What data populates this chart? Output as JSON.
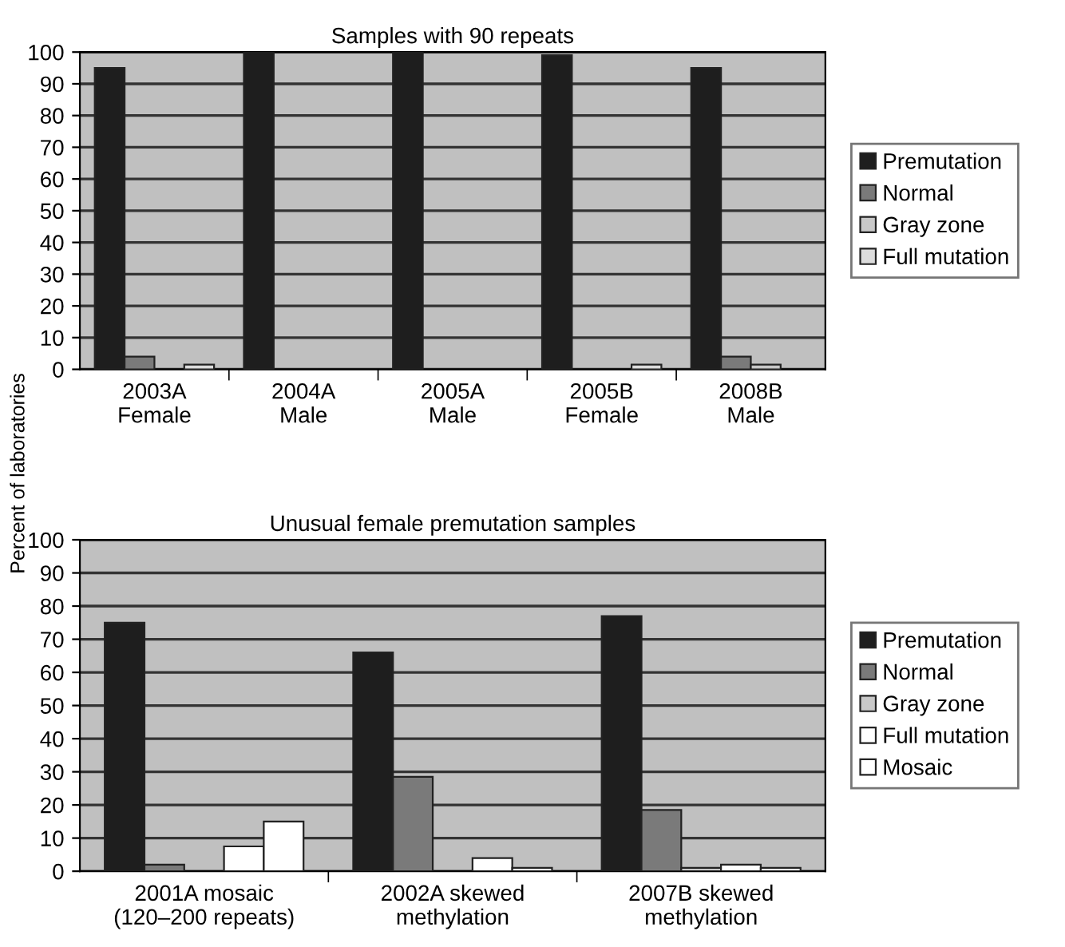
{
  "chart_data": [
    {
      "type": "bar",
      "title": "Samples with 90 repeats",
      "ylabel": "Percent of laboratories",
      "categories": [
        "2003A\nFemale",
        "2004A\nMale",
        "2005A\nMale",
        "2005B\nFemale",
        "2008B\nMale"
      ],
      "series": [
        {
          "name": "Premutation",
          "color": "#1e1e1e",
          "values": [
            95,
            100,
            100,
            99,
            95
          ]
        },
        {
          "name": "Normal",
          "color": "#7a7a7a",
          "values": [
            4,
            null,
            null,
            null,
            4
          ]
        },
        {
          "name": "Gray zone",
          "color": "#c8c8c8",
          "values": [
            null,
            null,
            null,
            null,
            1.5
          ]
        },
        {
          "name": "Full mutation",
          "color": "#dcdcdc",
          "values": [
            1.5,
            null,
            null,
            1.5,
            null
          ]
        }
      ],
      "ylim": [
        0,
        100
      ],
      "yticks": [
        0,
        10,
        20,
        30,
        40,
        50,
        60,
        70,
        80,
        90,
        100
      ],
      "grid": "y",
      "legend": "right"
    },
    {
      "type": "bar",
      "title": "Unusual female premutation samples",
      "categories": [
        "2001A mosaic\n(120–200 repeats)",
        "2002A skewed\nmethylation",
        "2007B skewed\nmethylation"
      ],
      "series": [
        {
          "name": "Premutation",
          "color": "#1e1e1e",
          "values": [
            75,
            66,
            77
          ]
        },
        {
          "name": "Normal",
          "color": "#7a7a7a",
          "values": [
            2,
            28.5,
            18.5
          ]
        },
        {
          "name": "Gray zone",
          "color": "#c8c8c8",
          "values": [
            null,
            null,
            1
          ]
        },
        {
          "name": "Full mutation",
          "color": "#ffffff",
          "values": [
            7.5,
            4,
            2
          ]
        },
        {
          "name": "Mosaic",
          "color": "#ffffff",
          "values": [
            15,
            1,
            1
          ]
        }
      ],
      "ylim": [
        0,
        100
      ],
      "yticks": [
        0,
        10,
        20,
        30,
        40,
        50,
        60,
        70,
        80,
        90,
        100
      ],
      "grid": "y",
      "legend": "right"
    }
  ]
}
